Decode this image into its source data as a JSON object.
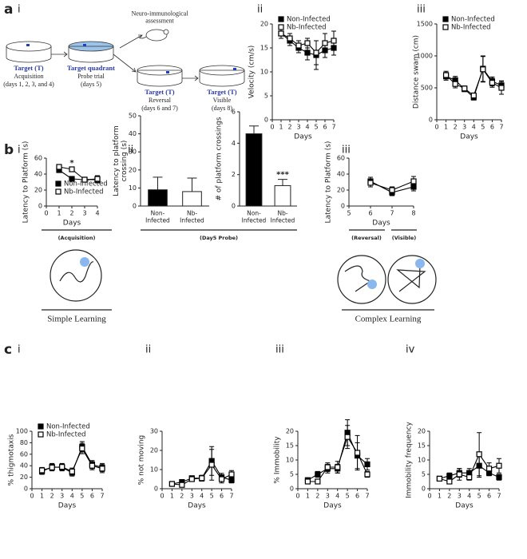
{
  "panel_labels": [
    "a",
    "i",
    "ii",
    "iii",
    "b",
    "i",
    "ii",
    "iii",
    "c",
    "i",
    "ii",
    "iii",
    "iv"
  ],
  "diagram": {
    "assessment": "Neuro-immunological\nassessment",
    "stages": [
      {
        "title": "Target (T)",
        "lines": [
          "Acquisition",
          "(days 1, 2, 3, and 4)"
        ]
      },
      {
        "title": "Target quadrant",
        "lines": [
          "Probe trial",
          "(days 5)"
        ]
      },
      {
        "title": "Target (T)",
        "lines": [
          "Reversal",
          "(days 6 and 7)"
        ]
      },
      {
        "title": "Target (T)",
        "lines": [
          "Visible",
          "(days 8)"
        ]
      }
    ]
  },
  "groups": {
    "acquisition": "(Acquisition)",
    "probe": "(Day5 Probe)",
    "reversal": "(Reversal)",
    "visible": "(Visible)",
    "simple": "Simple Learning",
    "complex": "Complex Learning"
  },
  "chart_data": [
    {
      "type": "line",
      "ylabel": "Velocity (cm/s)",
      "xlabel": "Days",
      "xlim": [
        0,
        7
      ],
      "xticks": [
        0,
        1,
        2,
        3,
        4,
        5,
        6,
        7
      ],
      "ylim": [
        0,
        20
      ],
      "yticks": [
        0,
        5,
        10,
        15,
        20
      ],
      "legend": "upper left",
      "x": [
        1,
        2,
        3,
        4,
        5,
        6,
        7
      ],
      "series": [
        {
          "name": "Non-Infected",
          "color": "#000000",
          "fill": "#000000",
          "values": [
            18,
            16.5,
            15,
            14,
            13.5,
            14.5,
            15
          ],
          "errors": [
            1,
            1,
            1,
            1.5,
            3,
            1.5,
            1.5
          ]
        },
        {
          "name": "Nb-Infected",
          "color": "#000000",
          "fill": "#ffffff",
          "values": [
            18,
            17,
            15.5,
            16,
            14,
            16,
            16.5
          ],
          "errors": [
            1,
            1,
            1,
            1,
            2.5,
            2,
            2
          ]
        }
      ]
    },
    {
      "type": "line",
      "ylabel": "Distance swam (cm)",
      "xlabel": "Days",
      "xlim": [
        0,
        7
      ],
      "xticks": [
        0,
        1,
        2,
        3,
        4,
        5,
        6,
        7
      ],
      "ylim": [
        0,
        1500
      ],
      "yticks": [
        0,
        500,
        1000,
        1500
      ],
      "legend": "upper left",
      "x": [
        1,
        2,
        3,
        4,
        5,
        6,
        7
      ],
      "series": [
        {
          "name": "Non-Infected",
          "color": "#000000",
          "fill": "#000000",
          "values": [
            680,
            620,
            480,
            350,
            800,
            600,
            540
          ],
          "errors": [
            60,
            60,
            40,
            40,
            200,
            70,
            70
          ]
        },
        {
          "name": "Nb-Infected",
          "color": "#000000",
          "fill": "#ffffff",
          "values": [
            700,
            560,
            490,
            380,
            790,
            580,
            500
          ],
          "errors": [
            60,
            60,
            40,
            40,
            200,
            70,
            100
          ]
        }
      ]
    },
    {
      "type": "line",
      "ylabel": "Latency to Platform (s)",
      "xlabel": "Days",
      "xlim": [
        0,
        4
      ],
      "xticks": [
        0,
        1,
        2,
        3,
        4
      ],
      "ylim": [
        0,
        60
      ],
      "yticks": [
        0,
        20,
        40,
        60
      ],
      "legend": "lower right",
      "annotation": "*",
      "x": [
        1,
        2,
        3,
        4
      ],
      "series": [
        {
          "name": "Non-Infected",
          "color": "#000000",
          "fill": "#000000",
          "values": [
            45,
            34,
            33,
            33
          ],
          "errors": [
            3,
            3,
            3,
            4
          ]
        },
        {
          "name": "Nb-Infected",
          "color": "#000000",
          "fill": "#ffffff",
          "values": [
            49,
            46,
            33,
            34
          ],
          "errors": [
            3,
            3,
            3,
            4
          ]
        }
      ]
    },
    {
      "type": "bar",
      "ylabel": "Latency to platform\ncrossing (s)",
      "ylim": [
        0,
        50
      ],
      "yticks": [
        0,
        10,
        20,
        30,
        40,
        50
      ],
      "categories": [
        "Non-\nInfected",
        "Nb-\nInfected"
      ],
      "values": [
        9,
        8
      ],
      "errors": [
        7,
        7.5
      ],
      "colors": [
        "#000000",
        "#ffffff"
      ]
    },
    {
      "type": "bar",
      "ylabel": "# of platform crossings",
      "ylim": [
        0,
        6
      ],
      "yticks": [
        0,
        2,
        4,
        6
      ],
      "categories": [
        "Non-\nInfected",
        "Nb-\nInfected"
      ],
      "values": [
        4.6,
        1.3
      ],
      "errors": [
        0.5,
        0.4
      ],
      "colors": [
        "#000000",
        "#ffffff"
      ],
      "annotation": "***"
    },
    {
      "type": "line",
      "ylabel": "Latency to Platform (s)",
      "xlabel": "Days",
      "xlim": [
        5,
        8
      ],
      "xticks": [
        5,
        6,
        7,
        8
      ],
      "ylim": [
        0,
        60
      ],
      "yticks": [
        0,
        20,
        40,
        60
      ],
      "x": [
        6,
        7,
        8
      ],
      "series": [
        {
          "color": "#000000",
          "fill": "#000000",
          "values": [
            31,
            17,
            24
          ],
          "errors": [
            5,
            4,
            5
          ]
        },
        {
          "color": "#000000",
          "fill": "#ffffff",
          "values": [
            29,
            20,
            31
          ],
          "errors": [
            5,
            4,
            6
          ]
        }
      ]
    },
    {
      "type": "line",
      "ylabel": "% thigmotaxis",
      "xlabel": "Days",
      "xlim": [
        0,
        7
      ],
      "xticks": [
        0,
        1,
        2,
        3,
        4,
        5,
        6,
        7
      ],
      "ylim": [
        0,
        100
      ],
      "yticks": [
        0,
        20,
        40,
        60,
        80,
        100
      ],
      "legend": "upper left",
      "x": [
        1,
        2,
        3,
        4,
        5,
        6,
        7
      ],
      "series": [
        {
          "name": "Non-Infected",
          "color": "#000000",
          "fill": "#000000",
          "values": [
            30,
            38,
            37,
            28,
            73,
            42,
            37
          ],
          "errors": [
            5,
            6,
            6,
            6,
            9,
            7,
            7
          ]
        },
        {
          "name": "Nb-Infected",
          "color": "#000000",
          "fill": "#ffffff",
          "values": [
            32,
            37,
            38,
            30,
            70,
            40,
            35
          ],
          "errors": [
            5,
            6,
            6,
            6,
            9,
            7,
            7
          ]
        }
      ]
    },
    {
      "type": "line",
      "ylabel": "% not moving",
      "xlabel": "Days",
      "xlim": [
        0,
        7
      ],
      "xticks": [
        0,
        1,
        2,
        3,
        4,
        5,
        6,
        7
      ],
      "ylim": [
        0,
        30
      ],
      "yticks": [
        0,
        10,
        20,
        30
      ],
      "x": [
        1,
        2,
        3,
        4,
        5,
        6,
        7
      ],
      "series": [
        {
          "color": "#000000",
          "fill": "#000000",
          "values": [
            2.5,
            3.5,
            5.5,
            5.5,
            14.5,
            6,
            4.5
          ],
          "errors": [
            0.5,
            1,
            1,
            1.5,
            7.5,
            2,
            1.5
          ]
        },
        {
          "color": "#000000",
          "fill": "#ffffff",
          "values": [
            2.5,
            2,
            5,
            5.5,
            12.5,
            5,
            7.5
          ],
          "errors": [
            0.5,
            0.5,
            1,
            1.5,
            8,
            2,
            2
          ]
        }
      ]
    },
    {
      "type": "line",
      "ylabel": "% Immobility",
      "xlabel": "Days",
      "xlim": [
        0,
        7
      ],
      "xticks": [
        0,
        1,
        2,
        3,
        4,
        5,
        6,
        7
      ],
      "ylim": [
        0,
        20
      ],
      "yticks": [
        0,
        5,
        10,
        15,
        20
      ],
      "x": [
        1,
        2,
        3,
        4,
        5,
        6,
        7
      ],
      "series": [
        {
          "color": "#000000",
          "fill": "#000000",
          "values": [
            3,
            5,
            7,
            7,
            19.5,
            11.5,
            8.5
          ],
          "errors": [
            0.7,
            1,
            1.5,
            1.5,
            4.5,
            4.5,
            2
          ]
        },
        {
          "color": "#000000",
          "fill": "#ffffff",
          "values": [
            2.5,
            2.5,
            7.5,
            7.5,
            18,
            12.5,
            5
          ],
          "errors": [
            0.5,
            0.5,
            1.5,
            2,
            4,
            6,
            1
          ]
        }
      ]
    },
    {
      "type": "line",
      "ylabel": "Immobility frequency",
      "xlabel": "Days",
      "xlim": [
        0,
        7
      ],
      "xticks": [
        0,
        1,
        2,
        3,
        4,
        5,
        6,
        7
      ],
      "ylim": [
        0,
        20
      ],
      "yticks": [
        0,
        5,
        10,
        15,
        20
      ],
      "x": [
        1,
        2,
        3,
        4,
        5,
        6,
        7
      ],
      "series": [
        {
          "color": "#000000",
          "fill": "#000000",
          "values": [
            3.5,
            4.5,
            5.5,
            5.5,
            8,
            5.5,
            4
          ],
          "errors": [
            0.5,
            1,
            1.5,
            1.5,
            4,
            1,
            1
          ]
        },
        {
          "color": "#000000",
          "fill": "#ffffff",
          "values": [
            3.5,
            2.5,
            5,
            4,
            12,
            7,
            8
          ],
          "errors": [
            0.5,
            0.5,
            2,
            1,
            7.5,
            2,
            2.5
          ]
        }
      ]
    }
  ]
}
